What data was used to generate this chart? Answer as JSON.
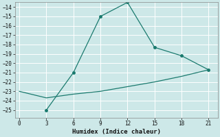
{
  "x_upper": [
    3,
    6,
    9,
    12,
    15,
    18,
    21
  ],
  "y_upper": [
    -25,
    -21,
    -15,
    -13.5,
    -18.3,
    -19.2,
    -20.7
  ],
  "x_lower": [
    0,
    3,
    6,
    9,
    12,
    15,
    18,
    21
  ],
  "y_lower": [
    -23,
    -23.7,
    -23.3,
    -23.0,
    -22.5,
    -22.0,
    -21.4,
    -20.7
  ],
  "line_color": "#1a7a6e",
  "bg_color": "#cde8e8",
  "grid_color": "#b0d0d0",
  "xlabel": "Humidex (Indice chaleur)",
  "xlim": [
    -0.5,
    22
  ],
  "ylim": [
    -25.8,
    -13.5
  ],
  "xticks": [
    0,
    3,
    6,
    9,
    12,
    15,
    18,
    21
  ],
  "yticks": [
    -25,
    -24,
    -23,
    -22,
    -21,
    -20,
    -19,
    -18,
    -17,
    -16,
    -15,
    -14
  ],
  "font_family": "monospace"
}
